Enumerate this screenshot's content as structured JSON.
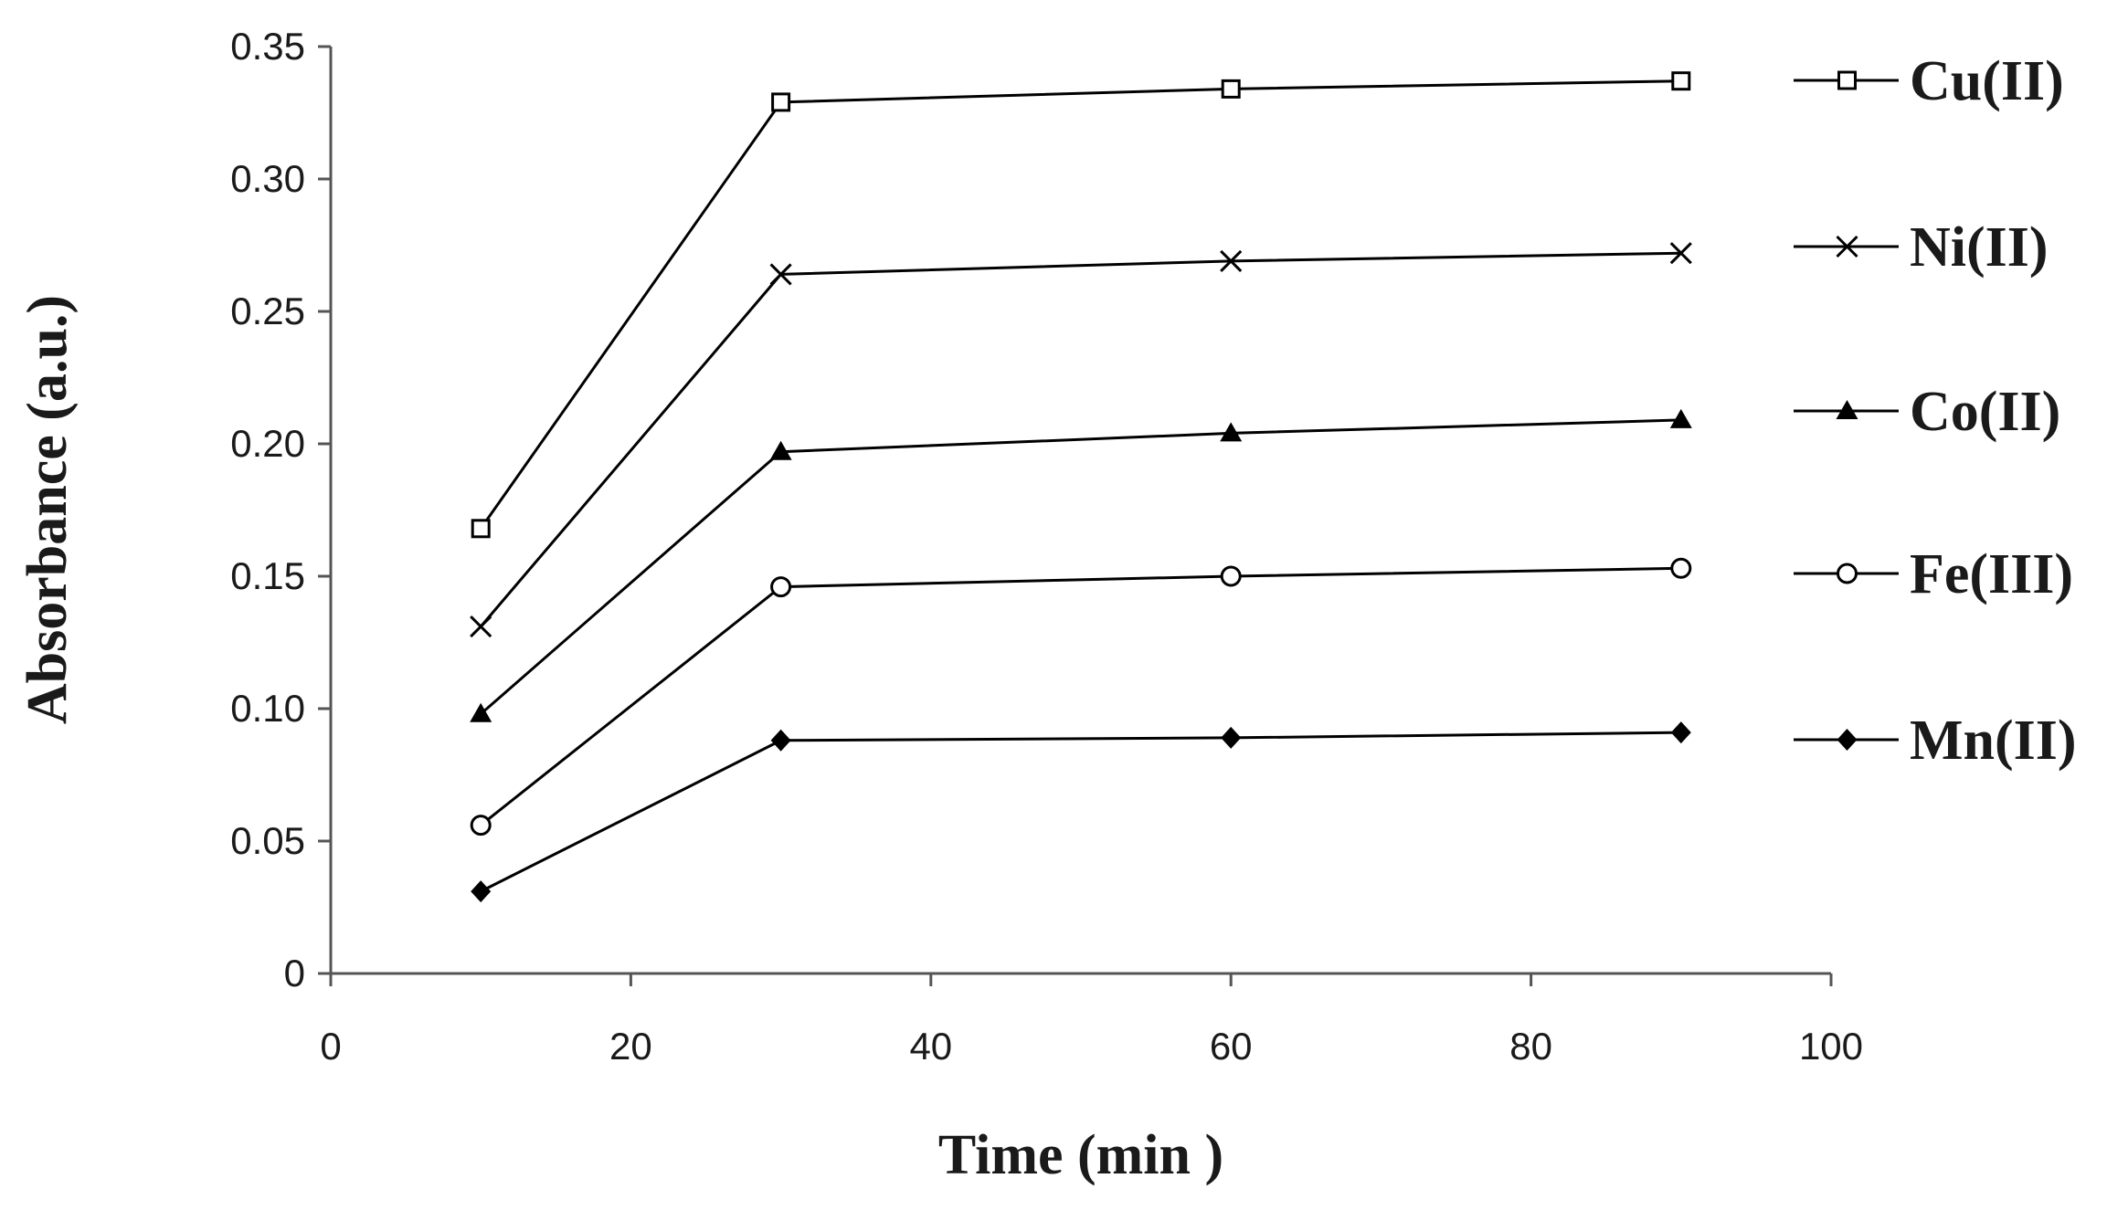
{
  "chart_data": {
    "type": "line",
    "xlabel": "Time (min )",
    "ylabel": "Absorbance (a.u.)",
    "xlim": [
      0,
      100
    ],
    "ylim": [
      0,
      0.35
    ],
    "xticks": [
      "0",
      "20",
      "40",
      "60",
      "80",
      "100"
    ],
    "yticks": [
      "0",
      "0.05",
      "0.10",
      "0.15",
      "0.20",
      "0.25",
      "0.30",
      "0.35"
    ],
    "grid": false,
    "legend_position": "right",
    "x": [
      10,
      30,
      60,
      90
    ],
    "series": [
      {
        "name": "Cu(II)",
        "marker": "square-open",
        "values": [
          0.168,
          0.329,
          0.334,
          0.337
        ]
      },
      {
        "name": "Ni(II)",
        "marker": "x",
        "values": [
          0.131,
          0.264,
          0.269,
          0.272
        ]
      },
      {
        "name": "Co(II)",
        "marker": "triangle-filled",
        "values": [
          0.098,
          0.197,
          0.204,
          0.209
        ]
      },
      {
        "name": "Fe(III)",
        "marker": "circle-open",
        "values": [
          0.056,
          0.146,
          0.15,
          0.153
        ]
      },
      {
        "name": "Mn(II)",
        "marker": "diamond-filled",
        "values": [
          0.031,
          0.088,
          0.089,
          0.091
        ]
      }
    ],
    "colors": {
      "line": "#000000",
      "axis": "#555555",
      "text": "#1a1a1a"
    }
  }
}
